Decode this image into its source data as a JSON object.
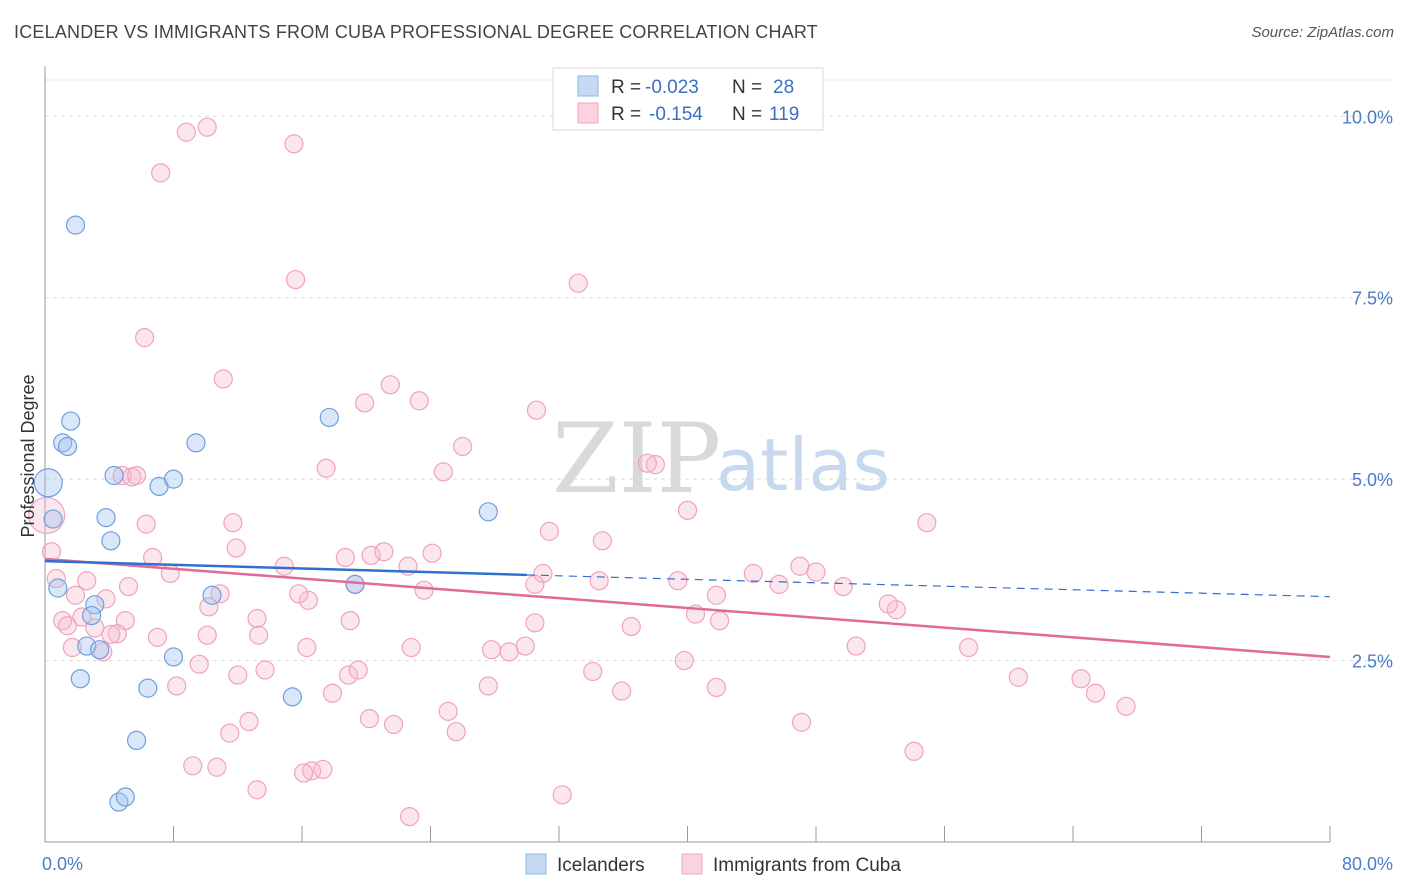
{
  "title": "ICELANDER VS IMMIGRANTS FROM CUBA PROFESSIONAL DEGREE CORRELATION CHART",
  "source": "Source: ZipAtlas.com",
  "watermark": {
    "zip": "ZIP",
    "atlas": "atlas"
  },
  "chart_data": {
    "type": "scatter",
    "ylabel": "Professional Degree",
    "xlim": [
      0,
      80
    ],
    "ylim": [
      0,
      10.5
    ],
    "x_tick_labels": [
      "0.0%",
      "80.0%"
    ],
    "y_ticks": [
      2.5,
      5.0,
      7.5,
      10.0
    ],
    "y_tick_labels": [
      "2.5%",
      "5.0%",
      "7.5%",
      "10.0%"
    ],
    "grid": true,
    "legend_position": "top-center",
    "colors": {
      "Icelanders": "#8fb8e8",
      "Immigrants from Cuba": "#f2a8c0",
      "blue_line": "#2f6fd0",
      "pink_line": "#e06a98"
    },
    "legend": [
      {
        "label_r": "R = ",
        "r": "-0.023",
        "label_n": "N = ",
        "n": "28"
      },
      {
        "label_r": "R = ",
        "r": "-0.154",
        "label_n": "N = ",
        "n": "119"
      }
    ],
    "series": [
      {
        "name": "Icelanders",
        "trend": {
          "x": [
            0,
            30
          ],
          "y": [
            3.87,
            3.68
          ],
          "dashed_to": [
            80,
            3.38
          ]
        },
        "points": [
          [
            1.9,
            8.5
          ],
          [
            1.6,
            5.8
          ],
          [
            1.1,
            5.5
          ],
          [
            1.4,
            5.45
          ],
          [
            0.2,
            4.95
          ],
          [
            0.5,
            4.45
          ],
          [
            4.3,
            5.05
          ],
          [
            7.1,
            4.9
          ],
          [
            8.0,
            5.0
          ],
          [
            9.4,
            5.5
          ],
          [
            17.7,
            5.85
          ],
          [
            27.6,
            4.55
          ],
          [
            3.8,
            4.47
          ],
          [
            4.1,
            4.15
          ],
          [
            0.8,
            3.5
          ],
          [
            3.1,
            3.27
          ],
          [
            2.9,
            3.12
          ],
          [
            10.4,
            3.4
          ],
          [
            19.3,
            3.55
          ],
          [
            2.6,
            2.7
          ],
          [
            3.4,
            2.65
          ],
          [
            8.0,
            2.55
          ],
          [
            2.2,
            2.25
          ],
          [
            6.4,
            2.12
          ],
          [
            15.4,
            2.0
          ],
          [
            5.7,
            1.4
          ],
          [
            4.6,
            0.55
          ],
          [
            5.0,
            0.62
          ]
        ],
        "sizes": {
          "large": [
            [
              0.2,
              4.95
            ]
          ]
        }
      },
      {
        "name": "Immigrants from Cuba",
        "trend": {
          "x": [
            0,
            80
          ],
          "y": [
            3.9,
            2.55
          ]
        },
        "points": [
          [
            8.8,
            9.78
          ],
          [
            10.1,
            9.85
          ],
          [
            15.5,
            9.62
          ],
          [
            7.2,
            9.22
          ],
          [
            15.6,
            7.75
          ],
          [
            33.2,
            7.7
          ],
          [
            6.2,
            6.95
          ],
          [
            11.1,
            6.38
          ],
          [
            21.5,
            6.3
          ],
          [
            23.3,
            6.08
          ],
          [
            19.9,
            6.05
          ],
          [
            30.6,
            5.95
          ],
          [
            26.0,
            5.45
          ],
          [
            38.0,
            5.2
          ],
          [
            37.5,
            5.22
          ],
          [
            17.5,
            5.15
          ],
          [
            24.8,
            5.1
          ],
          [
            4.8,
            5.05
          ],
          [
            5.4,
            5.03
          ],
          [
            5.7,
            5.05
          ],
          [
            0.1,
            4.5
          ],
          [
            6.3,
            4.38
          ],
          [
            11.7,
            4.4
          ],
          [
            31.4,
            4.28
          ],
          [
            34.7,
            4.15
          ],
          [
            40.0,
            4.57
          ],
          [
            54.9,
            4.4
          ],
          [
            0.4,
            4.0
          ],
          [
            6.7,
            3.92
          ],
          [
            11.9,
            4.05
          ],
          [
            20.3,
            3.95
          ],
          [
            21.1,
            4.0
          ],
          [
            24.1,
            3.98
          ],
          [
            18.7,
            3.92
          ],
          [
            14.9,
            3.8
          ],
          [
            22.6,
            3.8
          ],
          [
            31.0,
            3.7
          ],
          [
            39.4,
            3.6
          ],
          [
            44.1,
            3.7
          ],
          [
            47.0,
            3.8
          ],
          [
            48.0,
            3.72
          ],
          [
            0.7,
            3.63
          ],
          [
            2.6,
            3.6
          ],
          [
            7.8,
            3.7
          ],
          [
            5.2,
            3.52
          ],
          [
            1.9,
            3.4
          ],
          [
            3.8,
            3.35
          ],
          [
            16.4,
            3.33
          ],
          [
            15.8,
            3.42
          ],
          [
            10.9,
            3.42
          ],
          [
            19.3,
            3.55
          ],
          [
            23.6,
            3.47
          ],
          [
            30.5,
            3.55
          ],
          [
            34.5,
            3.6
          ],
          [
            41.8,
            3.4
          ],
          [
            45.7,
            3.55
          ],
          [
            49.7,
            3.52
          ],
          [
            53.0,
            3.2
          ],
          [
            52.5,
            3.28
          ],
          [
            10.2,
            3.24
          ],
          [
            1.1,
            3.05
          ],
          [
            1.4,
            2.98
          ],
          [
            2.3,
            3.1
          ],
          [
            5.0,
            3.05
          ],
          [
            3.1,
            2.95
          ],
          [
            4.5,
            2.87
          ],
          [
            4.1,
            2.86
          ],
          [
            7.0,
            2.82
          ],
          [
            13.2,
            3.08
          ],
          [
            19.0,
            3.05
          ],
          [
            30.5,
            3.02
          ],
          [
            36.5,
            2.97
          ],
          [
            40.5,
            3.14
          ],
          [
            42.0,
            3.05
          ],
          [
            3.6,
            2.62
          ],
          [
            1.7,
            2.68
          ],
          [
            10.1,
            2.85
          ],
          [
            13.3,
            2.85
          ],
          [
            16.3,
            2.68
          ],
          [
            22.8,
            2.68
          ],
          [
            27.8,
            2.65
          ],
          [
            28.9,
            2.62
          ],
          [
            29.9,
            2.7
          ],
          [
            50.5,
            2.7
          ],
          [
            57.5,
            2.68
          ],
          [
            39.8,
            2.5
          ],
          [
            9.6,
            2.45
          ],
          [
            12.0,
            2.3
          ],
          [
            13.7,
            2.37
          ],
          [
            18.9,
            2.3
          ],
          [
            19.5,
            2.37
          ],
          [
            34.1,
            2.35
          ],
          [
            27.6,
            2.15
          ],
          [
            8.2,
            2.15
          ],
          [
            17.9,
            2.05
          ],
          [
            35.9,
            2.08
          ],
          [
            41.8,
            2.13
          ],
          [
            60.6,
            2.27
          ],
          [
            64.5,
            2.25
          ],
          [
            65.4,
            2.05
          ],
          [
            67.3,
            1.87
          ],
          [
            25.1,
            1.8
          ],
          [
            12.7,
            1.66
          ],
          [
            20.2,
            1.7
          ],
          [
            21.7,
            1.62
          ],
          [
            11.5,
            1.5
          ],
          [
            25.6,
            1.52
          ],
          [
            47.1,
            1.65
          ],
          [
            54.1,
            1.25
          ],
          [
            9.2,
            1.05
          ],
          [
            10.7,
            1.03
          ],
          [
            16.6,
            0.98
          ],
          [
            17.3,
            1.0
          ],
          [
            16.1,
            0.95
          ],
          [
            13.2,
            0.72
          ],
          [
            32.2,
            0.65
          ],
          [
            22.7,
            0.35
          ]
        ]
      }
    ]
  },
  "bottom_legend": [
    {
      "label": "Icelanders"
    },
    {
      "label": "Immigrants from Cuba"
    }
  ]
}
